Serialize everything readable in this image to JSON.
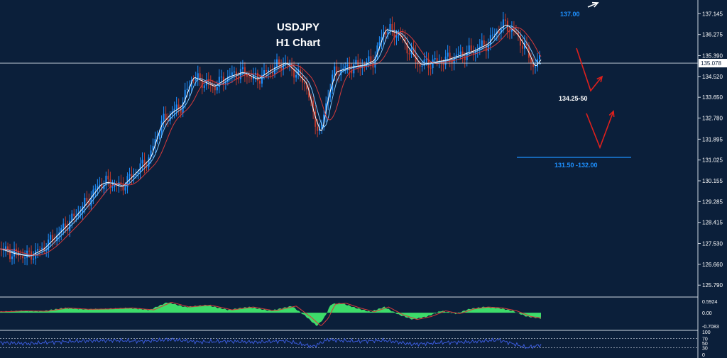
{
  "chart": {
    "title": "USDJPY",
    "subtitle": "H1 Chart",
    "colors": {
      "background": "#0b1f3a",
      "axis_text": "#ffffff",
      "candle_up": "#1e90ff",
      "candle_down": "#c0392b",
      "ma_fast": "#ffffff",
      "ma_mid": "#7fc8ff",
      "ma_slow": "#d63a3a",
      "oscillator_fill": "#3ddc6a",
      "oscillator_signal": "#d63a3a",
      "rsi_line": "#3b5bdb",
      "projection_arrow": "#e0201c",
      "target_line": "#1e90ff"
    },
    "annotations": {
      "upside_target": "137.00",
      "support_zone": "134.25-50",
      "lower_target": "131.50 -132.00",
      "current_price": "135.078"
    }
  },
  "chart_data": [
    {
      "type": "line",
      "name": "price",
      "ylim": [
        125.5,
        137.6
      ],
      "y_ticks": [
        "137.145",
        "136.275",
        "135.390",
        "134.520",
        "133.650",
        "132.780",
        "131.895",
        "131.025",
        "130.155",
        "129.285",
        "128.415",
        "127.530",
        "126.660",
        "125.790"
      ],
      "current_price": 135.078,
      "series": [
        {
          "x": [
            0,
            20,
            40,
            60,
            80,
            100,
            120,
            140,
            150,
            170,
            190,
            210,
            225,
            240,
            255,
            270,
            285,
            300,
            320,
            340,
            360,
            380,
            400,
            415,
            430,
            440,
            450,
            460,
            470,
            490,
            510,
            525,
            540,
            560,
            575,
            590,
            605,
            625,
            645,
            665,
            685,
            700,
            710,
            725,
            740,
            750,
            760
          ],
          "values": [
            127.3,
            127.1,
            127.0,
            127.3,
            127.9,
            128.5,
            129.2,
            130.0,
            130.1,
            129.9,
            130.5,
            131.1,
            132.5,
            133.0,
            133.3,
            134.5,
            134.3,
            134.1,
            134.5,
            134.7,
            134.4,
            134.8,
            135.1,
            134.7,
            134.2,
            132.9,
            132.1,
            133.7,
            134.7,
            134.9,
            135.0,
            135.2,
            136.5,
            136.3,
            135.6,
            135.0,
            135.1,
            135.2,
            135.4,
            135.6,
            135.9,
            136.5,
            136.7,
            136.3,
            135.6,
            134.9,
            135.3
          ]
        }
      ]
    },
    {
      "type": "area",
      "name": "oscillator",
      "ylim": [
        -0.85,
        0.75
      ],
      "y_ticks": [
        "0.5924",
        "0.00",
        "-0.7083"
      ],
      "series": [
        {
          "x": [
            0,
            30,
            60,
            90,
            120,
            150,
            180,
            210,
            235,
            260,
            290,
            320,
            350,
            380,
            410,
            430,
            445,
            455,
            465,
            480,
            500,
            520,
            540,
            560,
            580,
            600,
            620,
            640,
            660,
            680,
            700,
            720,
            740,
            760
          ],
          "values": [
            0.05,
            0.1,
            0.08,
            0.25,
            0.18,
            0.2,
            0.25,
            0.15,
            0.55,
            0.3,
            0.4,
            0.15,
            0.3,
            0.1,
            0.35,
            -0.2,
            -0.7,
            -0.3,
            0.45,
            0.5,
            0.25,
            0.05,
            0.3,
            -0.1,
            -0.35,
            -0.2,
            0.1,
            -0.05,
            0.2,
            0.3,
            0.25,
            0.1,
            -0.2,
            -0.3
          ]
        }
      ]
    },
    {
      "type": "line",
      "name": "rsi",
      "ylim": [
        0,
        100
      ],
      "y_ticks": [
        "100",
        "70",
        "50",
        "30",
        "0"
      ],
      "series": [
        {
          "x": [
            0,
            40,
            80,
            120,
            160,
            200,
            240,
            280,
            320,
            360,
            400,
            440,
            460,
            500,
            540,
            580,
            620,
            660,
            700,
            720,
            740,
            760
          ],
          "values": [
            52,
            48,
            55,
            60,
            62,
            58,
            66,
            55,
            58,
            54,
            60,
            35,
            65,
            58,
            62,
            45,
            52,
            55,
            64,
            48,
            30,
            42
          ]
        }
      ]
    }
  ]
}
